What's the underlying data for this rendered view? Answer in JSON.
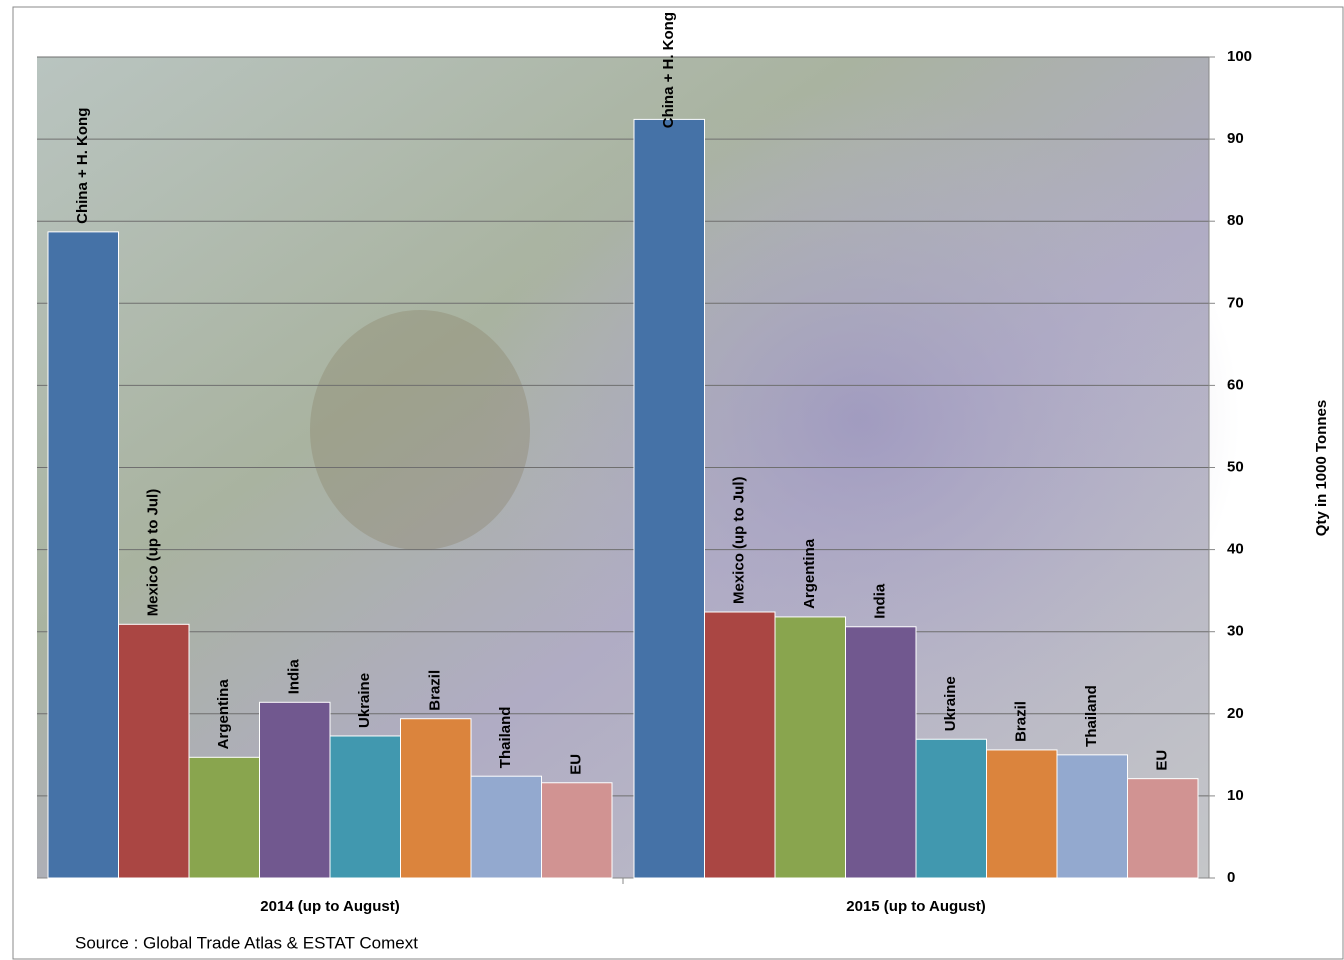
{
  "chart_data": {
    "type": "bar",
    "categories": [
      "2014 (up to August)",
      "2015 (up to August)"
    ],
    "series": [
      {
        "name": "China + H. Kong",
        "color": "#4572a7",
        "values": [
          78.7,
          92.4
        ]
      },
      {
        "name": "Mexico (up to Jul)",
        "color": "#aa4643",
        "values": [
          30.9,
          32.4
        ]
      },
      {
        "name": "Argentina",
        "color": "#89a54e",
        "values": [
          14.7,
          31.8
        ]
      },
      {
        "name": "India",
        "color": "#71588f",
        "values": [
          21.4,
          30.6
        ]
      },
      {
        "name": "Ukraine",
        "color": "#4198af",
        "values": [
          17.3,
          16.9
        ]
      },
      {
        "name": "Brazil",
        "color": "#db843d",
        "values": [
          19.4,
          15.6
        ]
      },
      {
        "name": "Thailand",
        "color": "#93a9cf",
        "values": [
          12.4,
          15.0
        ]
      },
      {
        "name": "EU",
        "color": "#d19392",
        "values": [
          11.6,
          12.1
        ]
      }
    ],
    "y_axis_label": "Qty in 1000 Tonnes",
    "ylim": [
      0,
      100
    ],
    "yticks": [
      0,
      10,
      20,
      30,
      40,
      50,
      60,
      70,
      80,
      90,
      100
    ],
    "grid": true,
    "source": "Source : Global Trade Atlas & ESTAT Comext"
  }
}
